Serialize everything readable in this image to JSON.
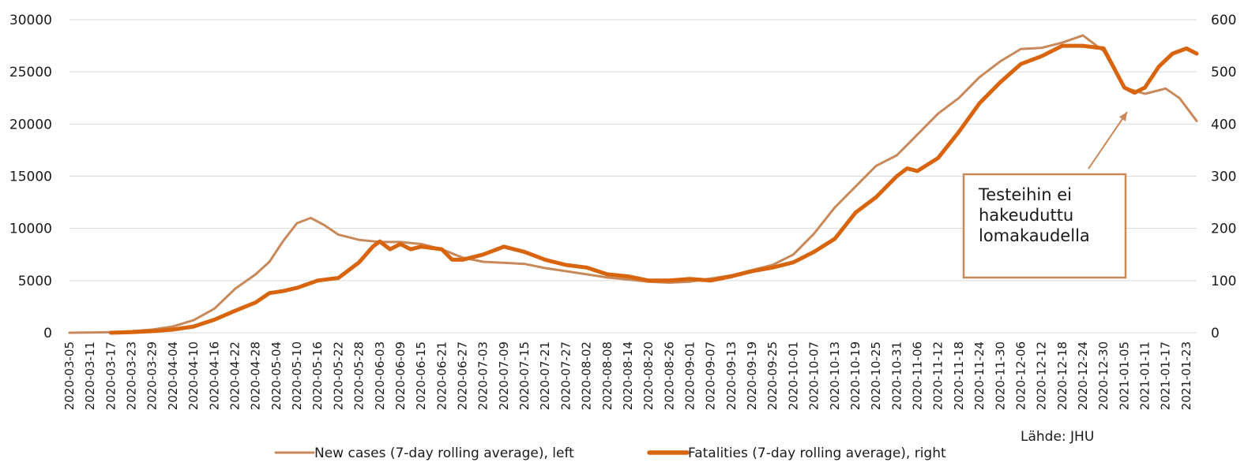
{
  "chart_data": {
    "type": "line",
    "y_left_ticks": [
      0,
      5000,
      10000,
      15000,
      20000,
      25000,
      30000
    ],
    "y_right_ticks": [
      0,
      100,
      200,
      300,
      400,
      500,
      600
    ],
    "ylim_left": [
      0,
      30000
    ],
    "ylim_right": [
      0,
      600
    ],
    "x_start": "2020-03-05",
    "x_end": "2021-01-26",
    "x_tick_labels": [
      "2020-03-05",
      "2020-03-11",
      "2020-03-17",
      "2020-03-23",
      "2020-03-29",
      "2020-04-04",
      "2020-04-10",
      "2020-04-16",
      "2020-04-22",
      "2020-04-28",
      "2020-05-04",
      "2020-05-10",
      "2020-05-16",
      "2020-05-22",
      "2020-05-28",
      "2020-06-03",
      "2020-06-09",
      "2020-06-15",
      "2020-06-21",
      "2020-06-27",
      "2020-07-03",
      "2020-07-09",
      "2020-07-15",
      "2020-07-21",
      "2020-07-27",
      "2020-08-02",
      "2020-08-08",
      "2020-08-14",
      "2020-08-20",
      "2020-08-26",
      "2020-09-01",
      "2020-09-07",
      "2020-09-13",
      "2020-09-19",
      "2020-09-25",
      "2020-10-01",
      "2020-10-07",
      "2020-10-13",
      "2020-10-19",
      "2020-10-25",
      "2020-10-31",
      "2020-11-06",
      "2020-11-12",
      "2020-11-18",
      "2020-11-24",
      "2020-11-30",
      "2020-12-06",
      "2020-12-12",
      "2020-12-18",
      "2020-12-24",
      "2020-12-30",
      "2021-01-05",
      "2021-01-11",
      "2021-01-17",
      "2021-01-23"
    ],
    "grid": true,
    "series": [
      {
        "name": "New cases (7-day rolling average), left",
        "axis": "left",
        "color": "#c8895a",
        "points": [
          [
            "2020-03-05",
            0
          ],
          [
            "2020-03-17",
            50
          ],
          [
            "2020-03-23",
            150
          ],
          [
            "2020-03-29",
            300
          ],
          [
            "2020-04-04",
            600
          ],
          [
            "2020-04-10",
            1200
          ],
          [
            "2020-04-16",
            2300
          ],
          [
            "2020-04-22",
            4200
          ],
          [
            "2020-04-28",
            5600
          ],
          [
            "2020-05-02",
            6800
          ],
          [
            "2020-05-06",
            8800
          ],
          [
            "2020-05-10",
            10500
          ],
          [
            "2020-05-14",
            11000
          ],
          [
            "2020-05-18",
            10300
          ],
          [
            "2020-05-22",
            9400
          ],
          [
            "2020-05-28",
            8900
          ],
          [
            "2020-06-03",
            8700
          ],
          [
            "2020-06-09",
            8700
          ],
          [
            "2020-06-15",
            8500
          ],
          [
            "2020-06-21",
            8000
          ],
          [
            "2020-06-27",
            7200
          ],
          [
            "2020-07-03",
            6800
          ],
          [
            "2020-07-09",
            6700
          ],
          [
            "2020-07-15",
            6600
          ],
          [
            "2020-07-21",
            6200
          ],
          [
            "2020-07-27",
            5900
          ],
          [
            "2020-08-02",
            5600
          ],
          [
            "2020-08-08",
            5300
          ],
          [
            "2020-08-14",
            5100
          ],
          [
            "2020-08-20",
            4900
          ],
          [
            "2020-08-26",
            4800
          ],
          [
            "2020-09-01",
            4900
          ],
          [
            "2020-09-07",
            5200
          ],
          [
            "2020-09-13",
            5500
          ],
          [
            "2020-09-19",
            6000
          ],
          [
            "2020-09-25",
            6500
          ],
          [
            "2020-10-01",
            7500
          ],
          [
            "2020-10-07",
            9500
          ],
          [
            "2020-10-13",
            12000
          ],
          [
            "2020-10-19",
            14000
          ],
          [
            "2020-10-25",
            16000
          ],
          [
            "2020-10-31",
            17000
          ],
          [
            "2020-11-06",
            19000
          ],
          [
            "2020-11-12",
            21000
          ],
          [
            "2020-11-18",
            22500
          ],
          [
            "2020-11-24",
            24500
          ],
          [
            "2020-11-30",
            26000
          ],
          [
            "2020-12-06",
            27200
          ],
          [
            "2020-12-12",
            27300
          ],
          [
            "2020-12-18",
            27800
          ],
          [
            "2020-12-24",
            28500
          ],
          [
            "2020-12-30",
            27000
          ],
          [
            "2021-01-05",
            23500
          ],
          [
            "2021-01-11",
            22900
          ],
          [
            "2021-01-17",
            23400
          ],
          [
            "2021-01-21",
            22500
          ],
          [
            "2021-01-26",
            20300
          ]
        ]
      },
      {
        "name": "Fatalities (7-day rolling average), right",
        "axis": "right",
        "color": "#d9640e",
        "points": [
          [
            "2020-03-17",
            0
          ],
          [
            "2020-03-23",
            1
          ],
          [
            "2020-03-29",
            3
          ],
          [
            "2020-04-04",
            6
          ],
          [
            "2020-04-10",
            12
          ],
          [
            "2020-04-16",
            25
          ],
          [
            "2020-04-22",
            42
          ],
          [
            "2020-04-28",
            58
          ],
          [
            "2020-05-02",
            76
          ],
          [
            "2020-05-06",
            80
          ],
          [
            "2020-05-10",
            86
          ],
          [
            "2020-05-16",
            100
          ],
          [
            "2020-05-22",
            105
          ],
          [
            "2020-05-28",
            135
          ],
          [
            "2020-06-01",
            165
          ],
          [
            "2020-06-03",
            175
          ],
          [
            "2020-06-06",
            160
          ],
          [
            "2020-06-09",
            170
          ],
          [
            "2020-06-12",
            160
          ],
          [
            "2020-06-15",
            165
          ],
          [
            "2020-06-21",
            160
          ],
          [
            "2020-06-24",
            140
          ],
          [
            "2020-06-27",
            140
          ],
          [
            "2020-07-03",
            150
          ],
          [
            "2020-07-09",
            165
          ],
          [
            "2020-07-15",
            155
          ],
          [
            "2020-07-21",
            140
          ],
          [
            "2020-07-27",
            130
          ],
          [
            "2020-08-02",
            125
          ],
          [
            "2020-08-08",
            112
          ],
          [
            "2020-08-14",
            108
          ],
          [
            "2020-08-20",
            100
          ],
          [
            "2020-08-26",
            100
          ],
          [
            "2020-09-01",
            103
          ],
          [
            "2020-09-07",
            100
          ],
          [
            "2020-09-13",
            108
          ],
          [
            "2020-09-19",
            118
          ],
          [
            "2020-09-25",
            125
          ],
          [
            "2020-10-01",
            135
          ],
          [
            "2020-10-07",
            155
          ],
          [
            "2020-10-13",
            180
          ],
          [
            "2020-10-19",
            230
          ],
          [
            "2020-10-25",
            260
          ],
          [
            "2020-10-31",
            300
          ],
          [
            "2020-11-03",
            315
          ],
          [
            "2020-11-06",
            310
          ],
          [
            "2020-11-12",
            335
          ],
          [
            "2020-11-18",
            385
          ],
          [
            "2020-11-24",
            440
          ],
          [
            "2020-11-30",
            480
          ],
          [
            "2020-12-06",
            515
          ],
          [
            "2020-12-12",
            530
          ],
          [
            "2020-12-18",
            550
          ],
          [
            "2020-12-24",
            550
          ],
          [
            "2020-12-30",
            545
          ],
          [
            "2021-01-05",
            470
          ],
          [
            "2021-01-08",
            460
          ],
          [
            "2021-01-11",
            470
          ],
          [
            "2021-01-15",
            510
          ],
          [
            "2021-01-19",
            535
          ],
          [
            "2021-01-23",
            545
          ],
          [
            "2021-01-26",
            535
          ]
        ]
      }
    ],
    "legend": {
      "position": "bottom",
      "items": [
        {
          "label": "New cases (7-day rolling average), left",
          "color": "#c8895a"
        },
        {
          "label": "Fatalities (7-day rolling average), right",
          "color": "#d9640e"
        }
      ]
    },
    "annotation": {
      "text_lines": [
        "Testeihin ei",
        "hakeuduttu",
        "lomakaudella"
      ],
      "box_color": "#c8895a",
      "arrow_color": "#c8895a"
    },
    "source": "Lähde: JHU"
  }
}
